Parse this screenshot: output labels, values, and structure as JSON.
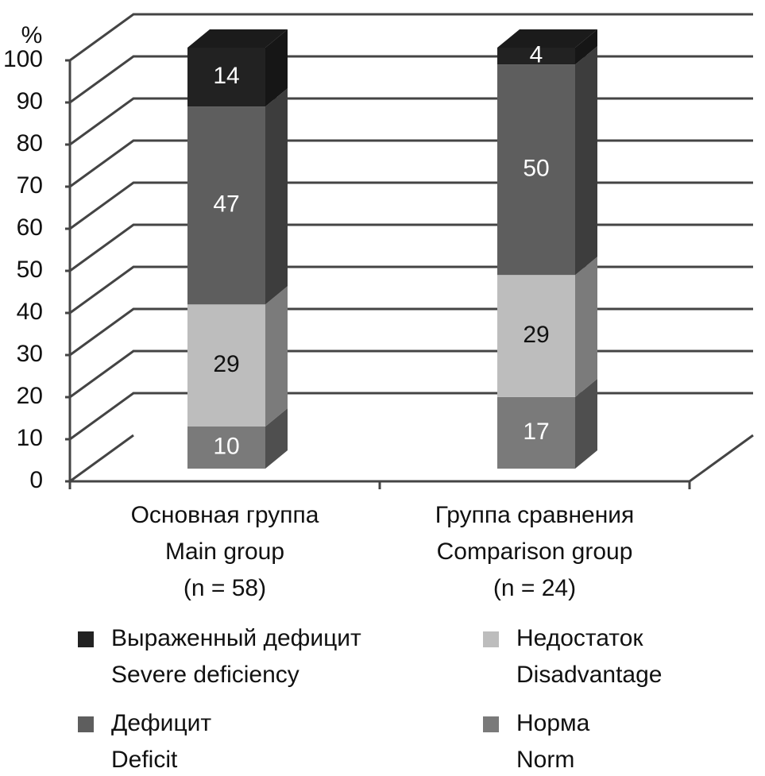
{
  "chart_data": {
    "type": "bar3d_stacked",
    "y_label": "%",
    "categories": [
      [
        "Основная группа",
        "Main group",
        "(n = 58)"
      ],
      [
        "Группа сравнения",
        "Comparison group",
        "(n = 24)"
      ]
    ],
    "series": [
      {
        "name": [
          "Норма",
          "Norm"
        ],
        "color": "#7a7a7a",
        "values": [
          10,
          17
        ]
      },
      {
        "name": [
          "Недостаток",
          "Disadvantage"
        ],
        "color": "#bdbdbd",
        "values": [
          29,
          29
        ]
      },
      {
        "name": [
          "Дефицит",
          "Deficit"
        ],
        "color": "#5e5e5e",
        "values": [
          47,
          50
        ]
      },
      {
        "name": [
          "Выраженный дефицит",
          "Severe deficiency"
        ],
        "color": "#222222",
        "values": [
          14,
          4
        ]
      }
    ],
    "ylim": [
      0,
      100
    ],
    "yticks": [
      0,
      10,
      20,
      30,
      40,
      50,
      60,
      70,
      80,
      90,
      100
    ],
    "grid": true
  }
}
